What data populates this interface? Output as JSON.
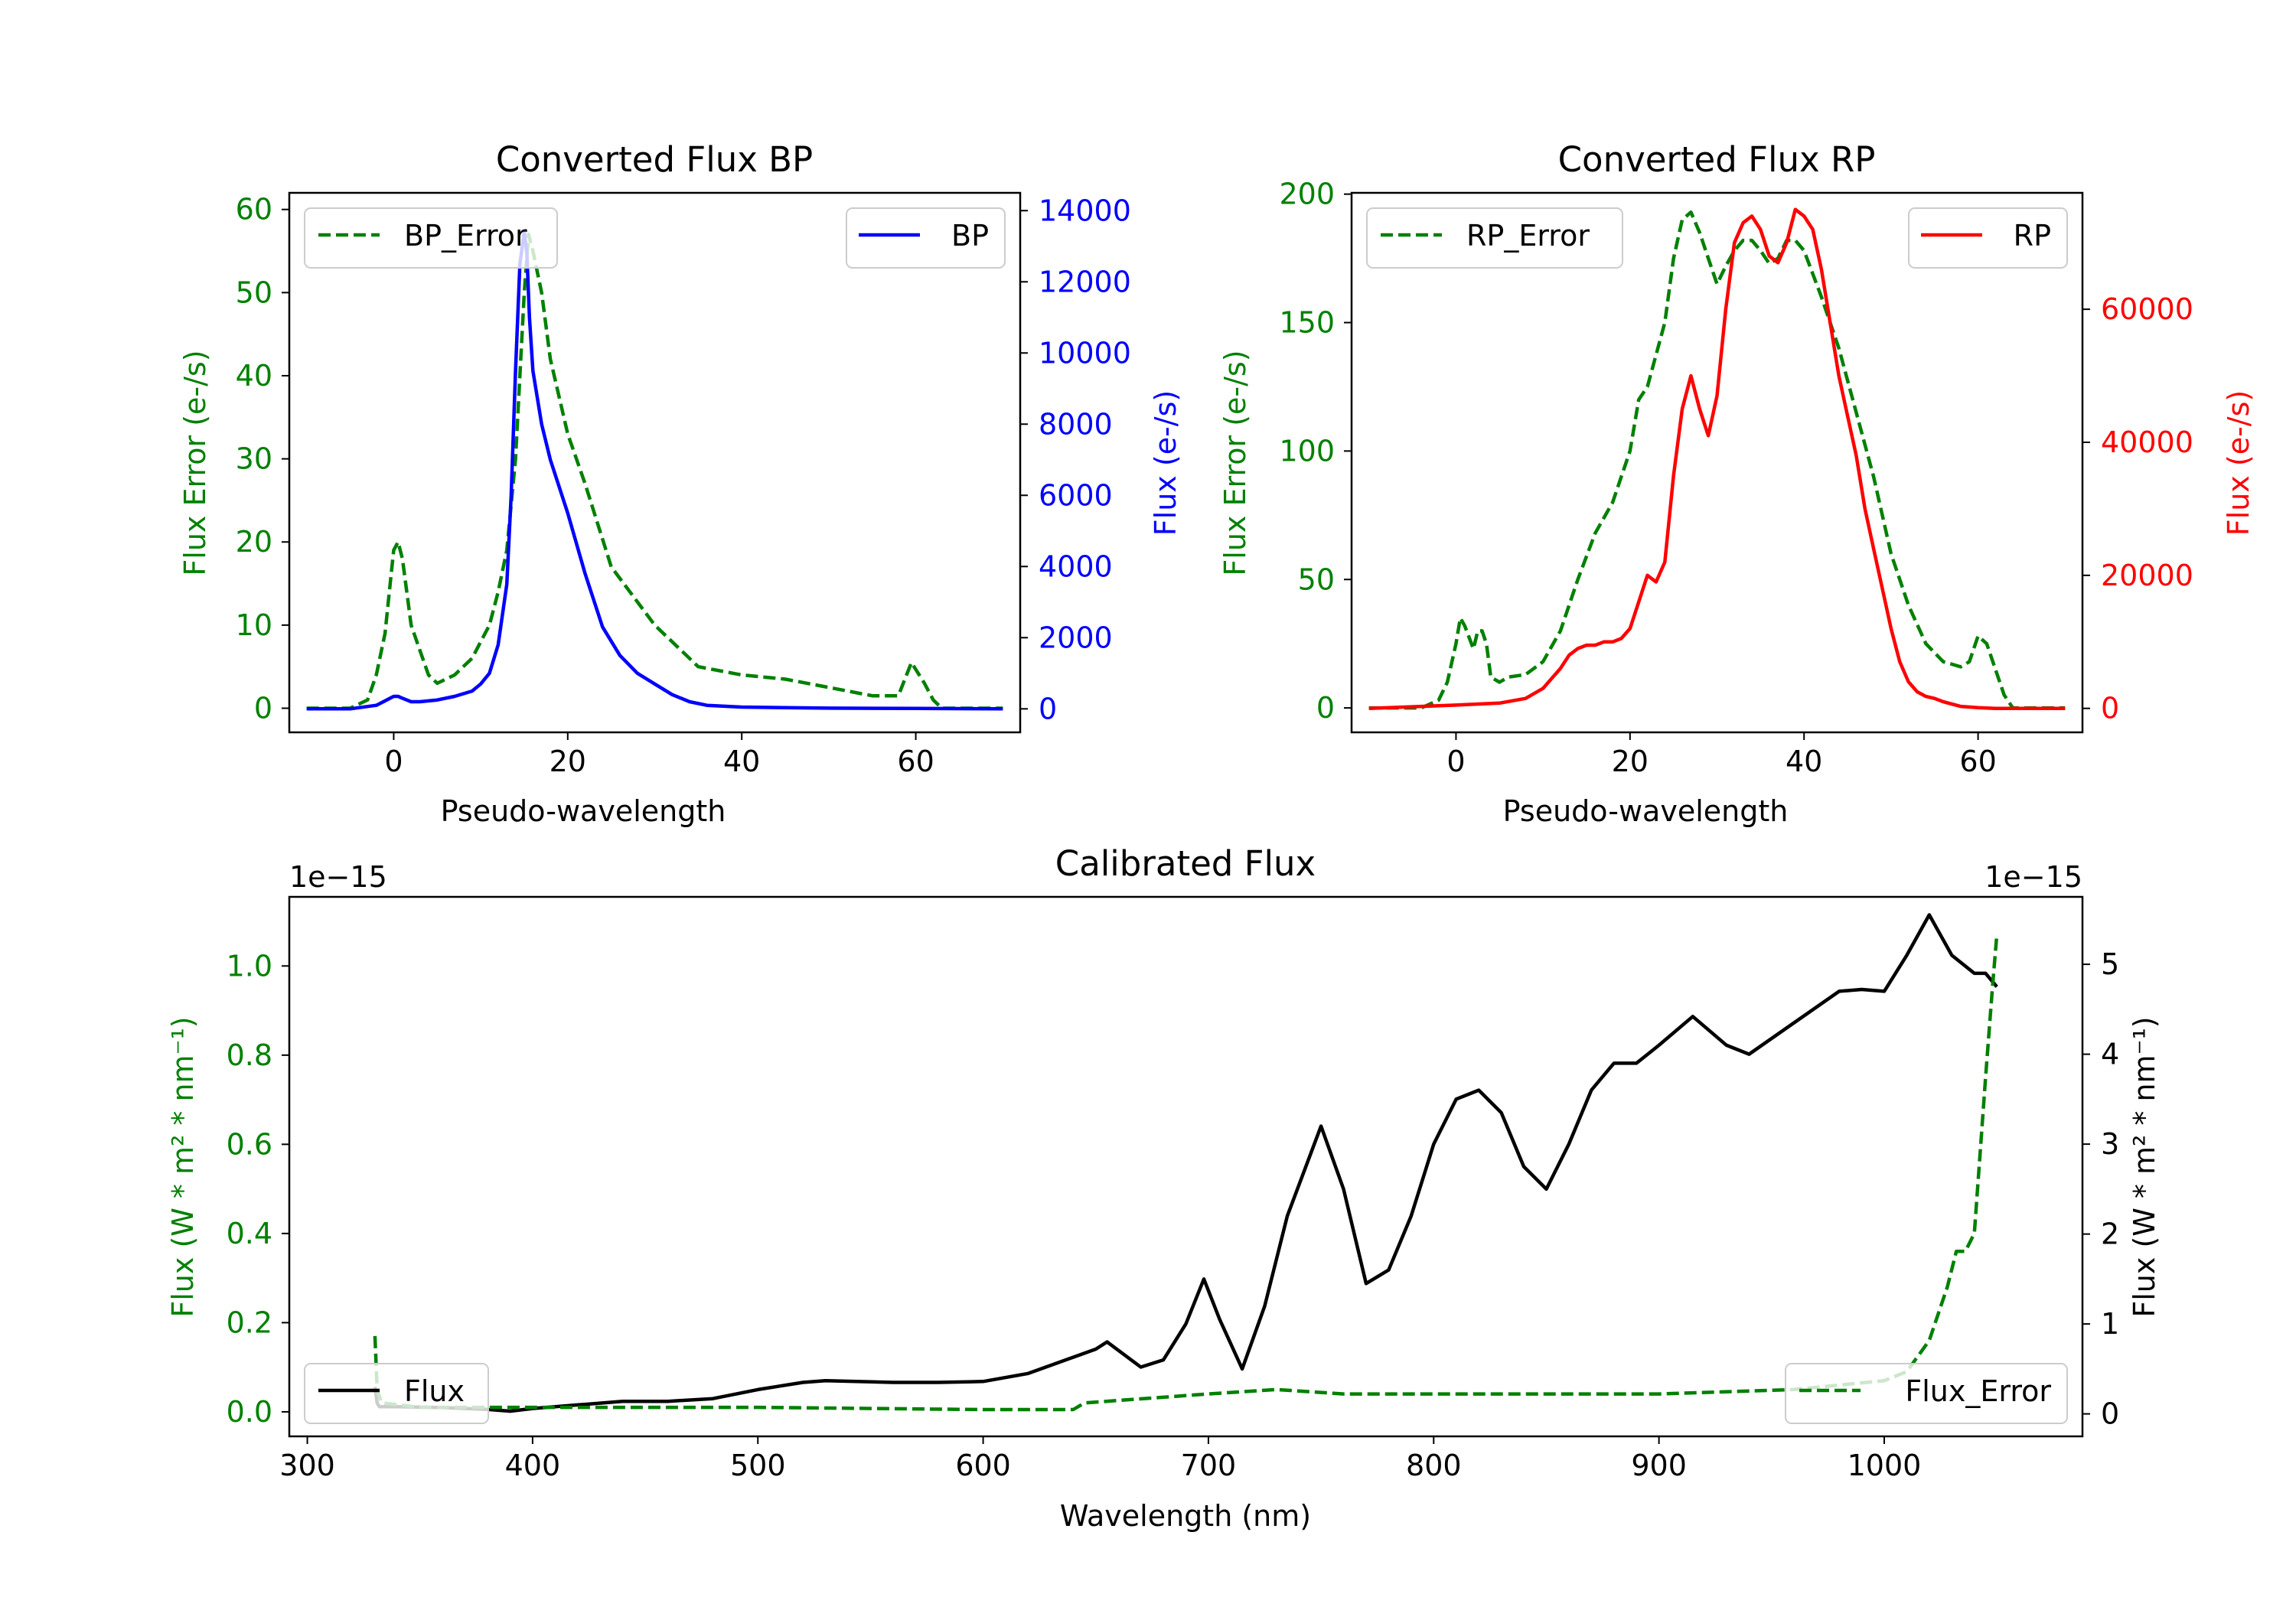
{
  "chart_data": [
    {
      "id": "bp",
      "type": "line",
      "title": "Converted Flux BP",
      "xlabel": "Pseudo-wavelength",
      "ylabel_left": "Flux Error (e-/s)",
      "ylabel_right": "Flux (e-/s)",
      "xlim": [
        -12,
        72
      ],
      "xticks": [
        0,
        20,
        40,
        60
      ],
      "ylim_left": [
        -2.9,
        62
      ],
      "yticks_left": [
        0,
        10,
        20,
        30,
        40,
        50,
        60
      ],
      "ylim_right": [
        -660,
        14500
      ],
      "yticks_right": [
        0,
        2000,
        4000,
        6000,
        8000,
        10000,
        12000,
        14000
      ],
      "left_color": "#008000",
      "right_color": "#0000ff",
      "legend_left": {
        "label": "BP_Error",
        "position": "upper left"
      },
      "legend_right": {
        "label": "BP",
        "position": "upper right"
      },
      "series": [
        {
          "name": "BP_Error",
          "axis": "left",
          "style": "dashed",
          "color": "#008000",
          "x": [
            -10,
            -5,
            -3,
            -2,
            -1,
            -0.5,
            0,
            0.5,
            1,
            1.5,
            2,
            3,
            4,
            5,
            7,
            9,
            10,
            11,
            12,
            13,
            14,
            15,
            15.5,
            16,
            17,
            18,
            20,
            22,
            25,
            30,
            35,
            40,
            45,
            50,
            55,
            58,
            59.5,
            61,
            62,
            63,
            66,
            70
          ],
          "y": [
            0,
            0,
            1,
            4,
            9,
            14,
            19,
            20,
            18,
            14,
            10,
            7,
            4,
            3,
            4,
            6,
            8,
            10,
            14,
            19,
            30,
            50,
            57,
            55,
            50,
            42,
            33,
            27,
            17,
            10,
            5,
            4,
            3.5,
            2.5,
            1.5,
            1.5,
            5.5,
            3,
            1,
            0,
            0,
            0
          ]
        },
        {
          "name": "BP",
          "axis": "right",
          "style": "solid",
          "color": "#0000ff",
          "x": [
            -10,
            -5,
            -2,
            0,
            0.5,
            1,
            2,
            3,
            5,
            7,
            9,
            10,
            11,
            12,
            13,
            13.5,
            14,
            14.5,
            15,
            15.3,
            15.6,
            16,
            17,
            18,
            20,
            22,
            24,
            26,
            28,
            30,
            32,
            34,
            36,
            40,
            50,
            60,
            70
          ],
          "y": [
            0,
            0,
            100,
            350,
            350,
            300,
            200,
            200,
            250,
            350,
            500,
            700,
            1000,
            1800,
            3500,
            6000,
            9500,
            12500,
            13400,
            12800,
            11000,
            9500,
            8000,
            7000,
            5500,
            3800,
            2300,
            1500,
            1000,
            700,
            400,
            200,
            100,
            50,
            20,
            10,
            0
          ]
        }
      ]
    },
    {
      "id": "rp",
      "type": "line",
      "title": "Converted Flux RP",
      "xlabel": "Pseudo-wavelength",
      "ylabel_left": "Flux Error (e-/s)",
      "ylabel_right": "Flux (e-/s)",
      "xlim": [
        -12,
        72
      ],
      "xticks": [
        0,
        20,
        40,
        60
      ],
      "ylim_left": [
        -9.5,
        200.5
      ],
      "yticks_left": [
        0,
        50,
        100,
        150,
        200
      ],
      "ylim_right": [
        -3600,
        77500
      ],
      "yticks_right": [
        0,
        20000,
        40000,
        60000
      ],
      "left_color": "#008000",
      "right_color": "#ff0000",
      "legend_left": {
        "label": "RP_Error",
        "position": "upper left"
      },
      "legend_right": {
        "label": "RP",
        "position": "upper right"
      },
      "series": [
        {
          "name": "RP_Error",
          "axis": "left",
          "style": "dashed",
          "color": "#008000",
          "x": [
            -10,
            -4,
            -2,
            -1,
            0,
            0.5,
            1,
            2,
            2.5,
            3,
            3.5,
            4,
            5,
            6,
            8,
            10,
            12,
            14,
            16,
            18,
            19,
            20,
            21,
            22,
            24,
            25,
            26,
            27,
            28,
            29,
            30,
            31,
            32,
            33,
            34,
            35,
            36,
            37,
            38,
            39,
            40,
            42,
            44,
            46,
            48,
            50,
            52,
            54,
            56,
            57,
            58,
            59,
            60,
            61,
            62,
            63,
            64,
            66,
            70
          ],
          "y": [
            0,
            0,
            3,
            10,
            25,
            35,
            32,
            23,
            30,
            30,
            25,
            12,
            10,
            12,
            13,
            18,
            30,
            50,
            68,
            80,
            90,
            100,
            120,
            125,
            150,
            175,
            190,
            193,
            185,
            175,
            165,
            172,
            178,
            182,
            182,
            178,
            173,
            175,
            182,
            182,
            178,
            160,
            140,
            115,
            90,
            60,
            40,
            25,
            18,
            17,
            16,
            18,
            28,
            25,
            15,
            5,
            0,
            0,
            0
          ]
        },
        {
          "name": "RP",
          "axis": "right",
          "style": "solid",
          "color": "#ff0000",
          "x": [
            -10,
            0,
            5,
            8,
            10,
            12,
            13,
            14,
            15,
            16,
            17,
            18,
            19,
            20,
            21,
            22,
            23,
            24,
            25,
            26,
            27,
            28,
            29,
            30,
            31,
            32,
            33,
            34,
            35,
            36,
            37,
            38,
            39,
            40,
            41,
            42,
            43,
            44,
            45,
            46,
            47,
            48,
            49,
            50,
            51,
            52,
            53,
            54,
            55,
            56,
            58,
            60,
            62,
            65,
            70
          ],
          "y": [
            0,
            500,
            800,
            1500,
            3000,
            6000,
            8000,
            9000,
            9500,
            9500,
            10000,
            10000,
            10500,
            12000,
            16000,
            20000,
            19000,
            22000,
            35000,
            45000,
            50000,
            45000,
            41000,
            47000,
            60000,
            70000,
            73000,
            74000,
            72000,
            68000,
            67000,
            70000,
            75000,
            74000,
            72000,
            66000,
            58000,
            50000,
            44000,
            38000,
            30000,
            24000,
            18000,
            12000,
            7000,
            4000,
            2500,
            1800,
            1500,
            1000,
            300,
            100,
            0,
            0,
            0
          ]
        }
      ]
    },
    {
      "id": "cal",
      "type": "line",
      "title": "Calibrated Flux",
      "xlabel": "Wavelength (nm)",
      "ylabel_left": "Flux (W * m² * nm⁻¹)",
      "ylabel_right": "Flux (W * m² * nm⁻¹)",
      "offset_left": "1e−15",
      "offset_right": "1e−15",
      "xlim": [
        292,
        1088
      ],
      "xticks": [
        300,
        400,
        500,
        600,
        700,
        800,
        900,
        1000
      ],
      "ylim_left": [
        -0.055,
        1.155
      ],
      "yticks_left": [
        0.0,
        0.2,
        0.4,
        0.6,
        0.8,
        1.0
      ],
      "ytick_labels_left": [
        "0.0",
        "0.2",
        "0.4",
        "0.6",
        "0.8",
        "1.0"
      ],
      "ylim_right": [
        -0.25,
        5.75
      ],
      "yticks_right": [
        0,
        1,
        2,
        3,
        4,
        5
      ],
      "left_color": "#008000",
      "right_color": "#000000",
      "legend_left": {
        "label": "Flux",
        "position": "lower left"
      },
      "legend_right": {
        "label": "Flux_Error",
        "position": "lower right"
      },
      "series": [
        {
          "name": "Flux",
          "axis": "right",
          "style": "solid",
          "color": "#000000",
          "x": [
            330,
            331,
            332,
            340,
            360,
            380,
            390,
            400,
            420,
            440,
            460,
            480,
            500,
            520,
            530,
            560,
            580,
            600,
            620,
            640,
            650,
            655,
            670,
            680,
            690,
            698,
            705,
            715,
            725,
            735,
            750,
            760,
            770,
            780,
            790,
            800,
            810,
            820,
            830,
            840,
            850,
            860,
            870,
            880,
            890,
            900,
            915,
            930,
            940,
            960,
            980,
            990,
            1000,
            1010,
            1020,
            1030,
            1040,
            1045,
            1050
          ],
          "y": [
            0.3,
            0.12,
            0.08,
            0.08,
            0.07,
            0.05,
            0.03,
            0.06,
            0.1,
            0.14,
            0.14,
            0.17,
            0.27,
            0.35,
            0.37,
            0.35,
            0.35,
            0.36,
            0.45,
            0.63,
            0.72,
            0.8,
            0.52,
            0.6,
            1.0,
            1.5,
            1.05,
            0.5,
            1.2,
            2.2,
            3.2,
            2.5,
            1.45,
            1.6,
            2.2,
            3.0,
            3.5,
            3.6,
            3.35,
            2.75,
            2.5,
            3.0,
            3.6,
            3.9,
            3.9,
            4.1,
            4.42,
            4.1,
            4.0,
            4.35,
            4.7,
            4.72,
            4.7,
            5.1,
            5.55,
            5.1,
            4.9,
            4.9,
            4.75
          ]
        },
        {
          "name": "Flux_Error",
          "axis": "left",
          "style": "dashed",
          "color": "#008000",
          "x": [
            330,
            331,
            333,
            350,
            400,
            500,
            600,
            640,
            645,
            700,
            730,
            760,
            800,
            900,
            960,
            1000,
            1010,
            1020,
            1028,
            1032,
            1036,
            1040,
            1045,
            1048,
            1050
          ],
          "y": [
            0.17,
            0.05,
            0.02,
            0.01,
            0.01,
            0.01,
            0.005,
            0.005,
            0.02,
            0.04,
            0.05,
            0.04,
            0.04,
            0.04,
            0.05,
            0.07,
            0.09,
            0.16,
            0.28,
            0.36,
            0.36,
            0.4,
            0.75,
            0.95,
            1.07
          ]
        }
      ]
    }
  ]
}
